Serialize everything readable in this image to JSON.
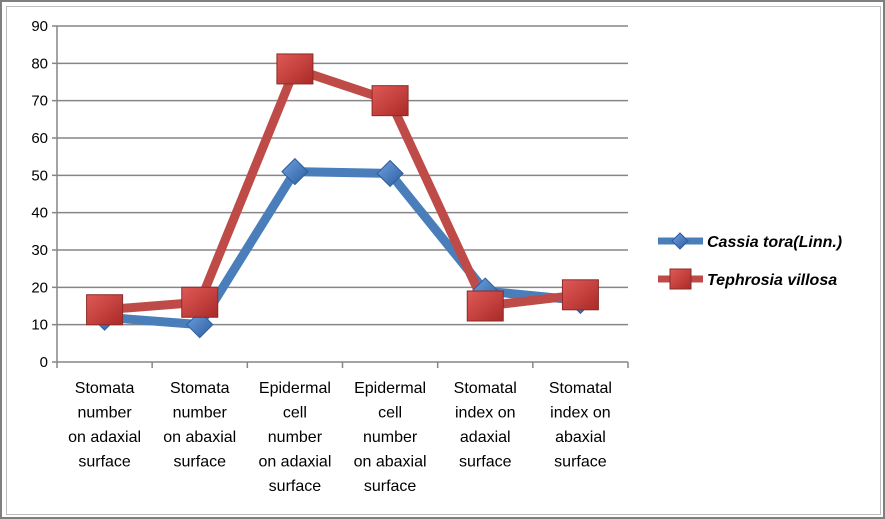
{
  "chart_data": {
    "type": "line",
    "title": "",
    "xlabel": "",
    "ylabel": "",
    "ylim": [
      0,
      90
    ],
    "yticks": [
      0,
      10,
      20,
      30,
      40,
      50,
      60,
      70,
      80,
      90
    ],
    "grid": true,
    "legend_placement": "right",
    "categories": [
      [
        "Stomata",
        "number",
        "on adaxial",
        "surface"
      ],
      [
        "Stomata",
        "number",
        "on abaxial",
        "surface"
      ],
      [
        "Epidermal",
        "cell",
        "number",
        "on adaxial",
        "surface"
      ],
      [
        "Epidermal",
        "cell",
        "number",
        "on abaxial",
        "surface"
      ],
      [
        "Stomatal",
        "index on",
        "adaxial",
        "surface"
      ],
      [
        "Stomatal",
        "index on",
        "abaxial",
        "surface"
      ]
    ],
    "series": [
      {
        "name": "Cassia tora(Linn.)",
        "marker": "diamond",
        "color": "#4a7ebb",
        "values": [
          12,
          10,
          51,
          50.5,
          19,
          16.5
        ]
      },
      {
        "name": "Tephrosia villosa",
        "marker": "square",
        "color": "#be4b48",
        "values": [
          14,
          16,
          78.5,
          70,
          15,
          18
        ]
      }
    ]
  }
}
